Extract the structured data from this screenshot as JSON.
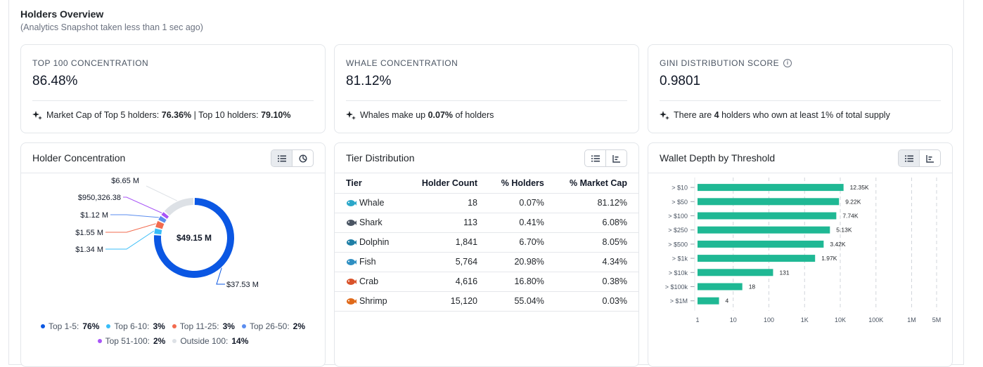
{
  "header": {
    "title": "Holders Overview",
    "subtitle": "(Analytics Snapshot taken less than 1 sec ago)"
  },
  "metrics": [
    {
      "label": "TOP 100 CONCENTRATION",
      "value": "86.48%",
      "note_parts": [
        "Market Cap of Top 5 holders: ",
        "76.36%",
        " | Top 10 holders: ",
        "79.10%"
      ]
    },
    {
      "label": "WHALE CONCENTRATION",
      "value": "81.12%",
      "note_parts": [
        "Whales make up ",
        "0.07%",
        " of holders"
      ]
    },
    {
      "label": "GINI DISTRIBUTION SCORE",
      "value": "0.9801",
      "note_parts": [
        "There are ",
        "4",
        " holders who own at least 1% of total supply"
      ]
    }
  ],
  "holder_concentration": {
    "title": "Holder Concentration",
    "center_label": "$49.15 M",
    "slices": [
      {
        "name": "Top 1-5",
        "percent": "76%",
        "amount": "$37.53 M",
        "color": "#0b57e3",
        "frac": 0.7636
      },
      {
        "name": "Top 6-10",
        "percent": "3%",
        "amount": "$1.34 M",
        "color": "#38bdf8",
        "frac": 0.0273
      },
      {
        "name": "Top 11-25",
        "percent": "3%",
        "amount": "$1.55 M",
        "color": "#f26b4f",
        "frac": 0.0315
      },
      {
        "name": "Top 26-50",
        "percent": "2%",
        "amount": "$1.12 M",
        "color": "#5b8def",
        "frac": 0.0228
      },
      {
        "name": "Top 51-100",
        "percent": "2%",
        "amount": "$950,326.38",
        "color": "#a855f7",
        "frac": 0.0193
      },
      {
        "name": "Outside 100",
        "percent": "14%",
        "amount": "$6.65 M",
        "color": "#dde1e6",
        "frac": 0.1353
      }
    ]
  },
  "tier_distribution": {
    "title": "Tier Distribution",
    "columns": [
      "Tier",
      "Holder Count",
      "% Holders",
      "% Market Cap"
    ],
    "rows": [
      {
        "tier": "Whale",
        "icon": "whale-icon",
        "count": "18",
        "holders": "0.07%",
        "mcap": "81.12%"
      },
      {
        "tier": "Shark",
        "icon": "shark-icon",
        "count": "113",
        "holders": "0.41%",
        "mcap": "6.08%"
      },
      {
        "tier": "Dolphin",
        "icon": "dolphin-icon",
        "count": "1,841",
        "holders": "6.70%",
        "mcap": "8.05%"
      },
      {
        "tier": "Fish",
        "icon": "fish-icon",
        "count": "5,764",
        "holders": "20.98%",
        "mcap": "4.34%"
      },
      {
        "tier": "Crab",
        "icon": "crab-icon",
        "count": "4,616",
        "holders": "16.80%",
        "mcap": "0.38%"
      },
      {
        "tier": "Shrimp",
        "icon": "shrimp-icon",
        "count": "15,120",
        "holders": "55.04%",
        "mcap": "0.03%"
      }
    ]
  },
  "wallet_depth": {
    "title": "Wallet Depth by Threshold",
    "bar_color": "#1fb894"
  },
  "chart_data": {
    "type": "bar",
    "orientation": "horizontal",
    "x_scale": "log",
    "categories": [
      "> $10",
      "> $50",
      "> $100",
      "> $250",
      "> $500",
      "> $1k",
      "> $10k",
      "> $100k",
      "> $1M"
    ],
    "values": [
      12350,
      9220,
      7740,
      5130,
      3420,
      1970,
      131,
      18,
      4
    ],
    "value_labels": [
      "12.35K",
      "9.22K",
      "7.74K",
      "5.13K",
      "3.42K",
      "1.97K",
      "131",
      "18",
      "4"
    ],
    "x_ticks": [
      1,
      10,
      100,
      1000,
      10000,
      100000,
      1000000,
      5000000
    ],
    "x_tick_labels": [
      "1",
      "10",
      "100",
      "1K",
      "10K",
      "100K",
      "1M",
      "5M"
    ],
    "xlim": [
      1,
      5000000
    ],
    "grid": true
  }
}
